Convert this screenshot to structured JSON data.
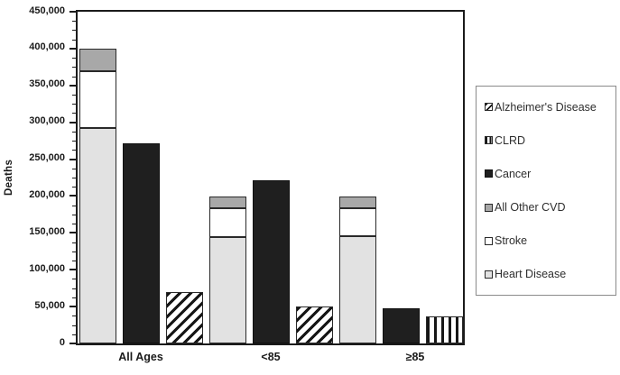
{
  "chart_data": {
    "type": "bar",
    "title": "",
    "ylabel": "Deaths",
    "xlabel": "",
    "ylim": [
      0,
      450000
    ],
    "y_major_step": 50000,
    "y_minor_step": 12500,
    "y_tick_labels": [
      "0",
      "50,000",
      "100,000",
      "150,000",
      "200,000",
      "250,000",
      "300,000",
      "350,000",
      "400,000",
      "450,000"
    ],
    "categories": [
      "All Ages",
      "<85",
      "≥85"
    ],
    "grid": false,
    "legend_position": "right",
    "series": [
      {
        "name": "Heart Disease",
        "pattern": "light-gray",
        "stack": "cvd",
        "values": [
          292000,
          144000,
          146000
        ]
      },
      {
        "name": "Stroke",
        "pattern": "white",
        "stack": "cvd",
        "values": [
          77000,
          39000,
          38000
        ]
      },
      {
        "name": "All Other CVD",
        "pattern": "gray",
        "stack": "cvd",
        "values": [
          31000,
          16000,
          15000
        ]
      },
      {
        "name": "Cancer",
        "pattern": "black",
        "stack": null,
        "values": [
          271000,
          221000,
          48000
        ]
      },
      {
        "name": "Alzheimer's Disease",
        "pattern": "diagonal-hatch",
        "stack": null,
        "values": [
          70000,
          50000,
          null
        ]
      },
      {
        "name": "CLRD",
        "pattern": "vertical-stripes",
        "stack": null,
        "values": [
          null,
          null,
          37000
        ]
      }
    ],
    "legend": [
      {
        "label": "Alzheimer's Disease",
        "pattern": "diagonal-hatch"
      },
      {
        "label": "CLRD",
        "pattern": "vertical-stripes"
      },
      {
        "label": "Cancer",
        "pattern": "black"
      },
      {
        "label": "All Other CVD",
        "pattern": "gray"
      },
      {
        "label": "Stroke",
        "pattern": "white"
      },
      {
        "label": "Heart Disease",
        "pattern": "light-gray"
      }
    ],
    "colors": {
      "bar_black": "#1f1f1f",
      "bar_gray": "#a8a8a8",
      "bar_light_gray": "#e2e2e2",
      "bar_white": "#ffffff",
      "hatch_ink": "#161616",
      "axis": "#1a1a1a",
      "legend_border": "#8a8a8a"
    }
  }
}
